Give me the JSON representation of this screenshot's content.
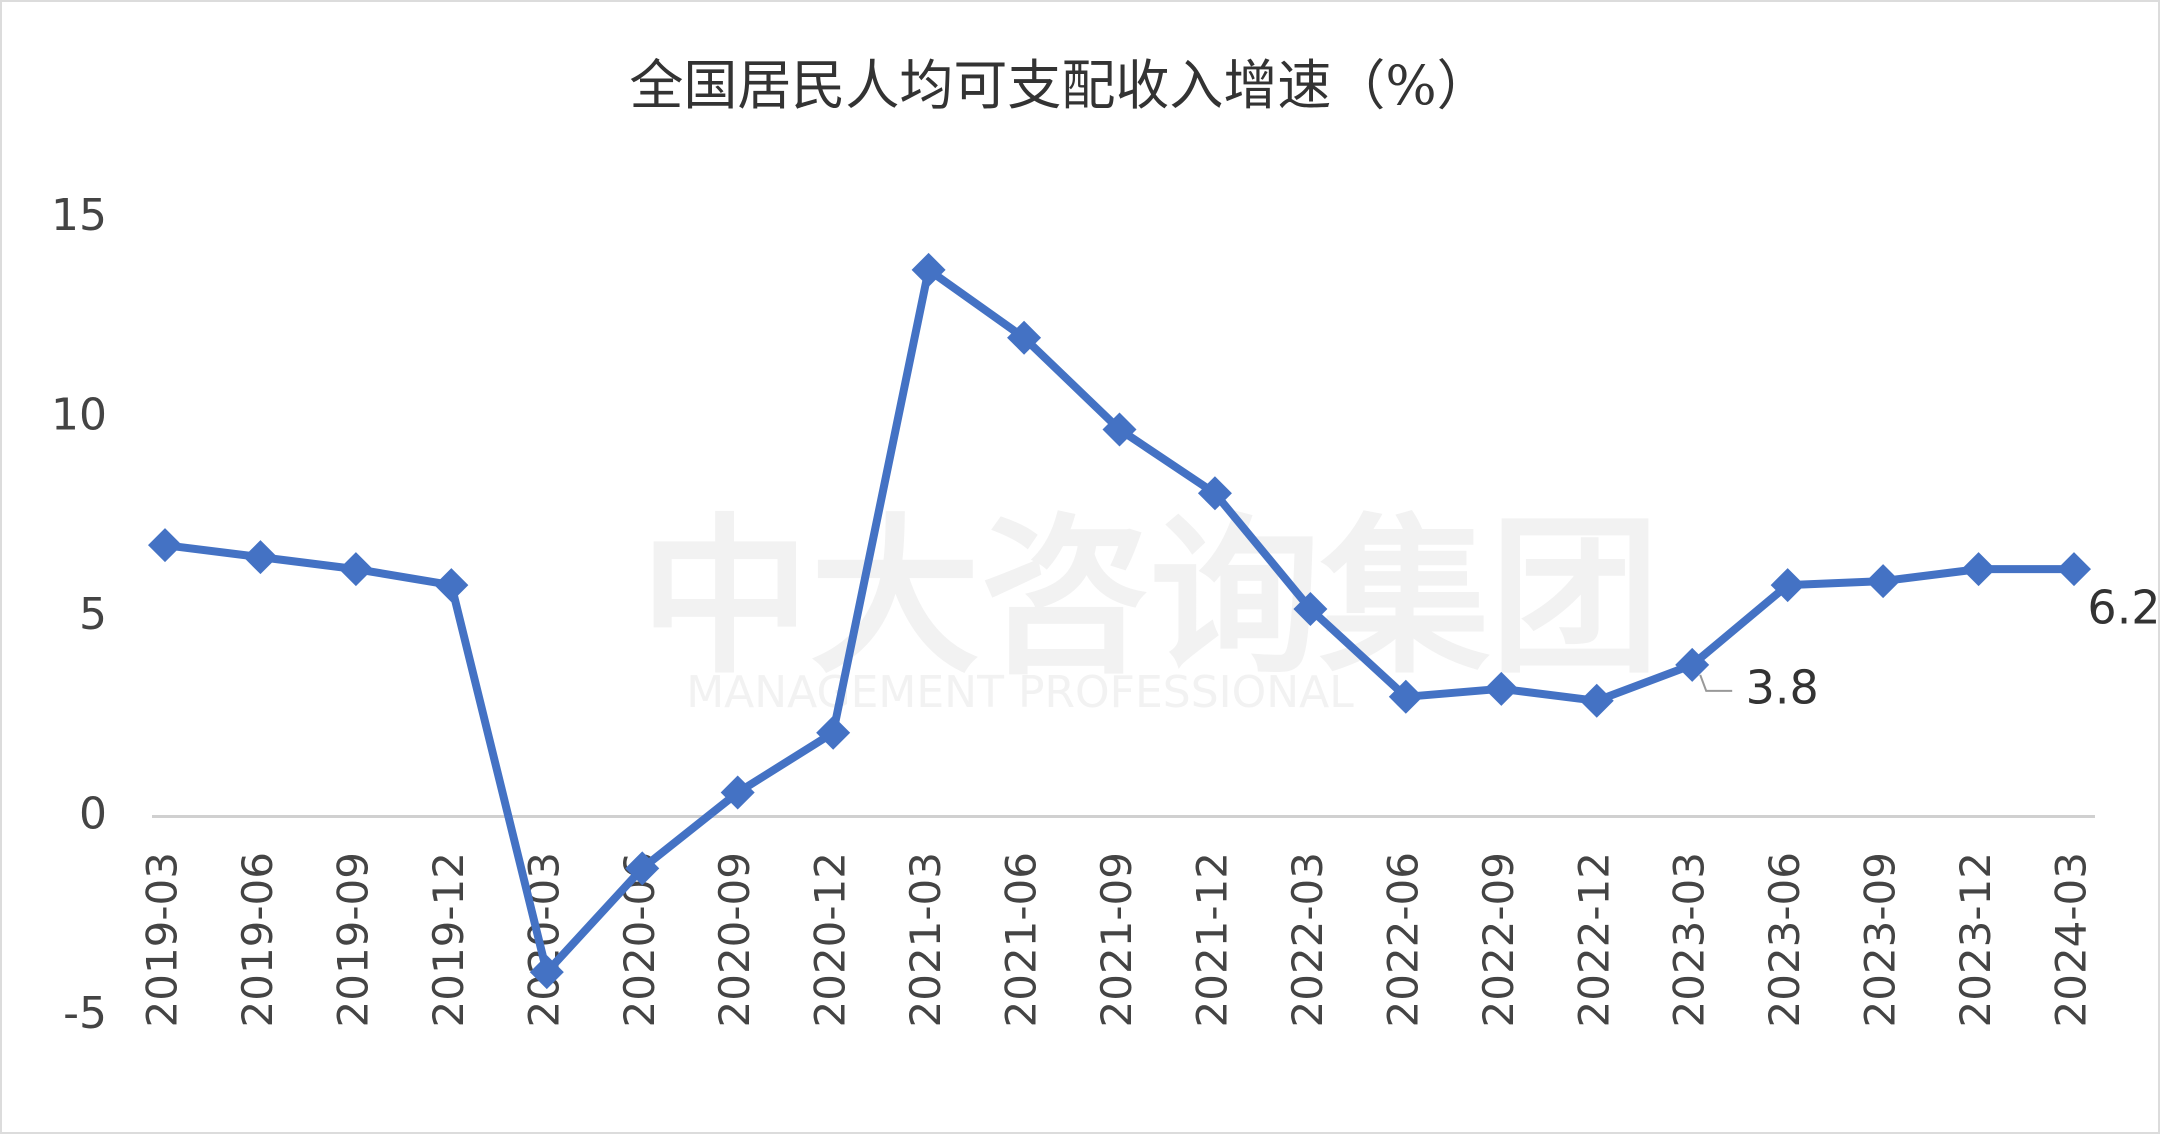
{
  "chart_data": {
    "type": "line",
    "title": "全国居民人均可支配收入增速（%）",
    "categories": [
      "2019-03",
      "2019-06",
      "2019-09",
      "2019-12",
      "2020-03",
      "2020-06",
      "2020-09",
      "2020-12",
      "2021-03",
      "2021-06",
      "2021-09",
      "2021-12",
      "2022-03",
      "2022-06",
      "2022-09",
      "2022-12",
      "2023-03",
      "2023-06",
      "2023-09",
      "2023-12",
      "2024-03"
    ],
    "values": [
      6.8,
      6.5,
      6.2,
      5.8,
      -3.9,
      -1.3,
      0.6,
      2.1,
      13.7,
      12.0,
      9.7,
      8.1,
      5.2,
      3.0,
      3.2,
      2.9,
      3.8,
      5.8,
      5.9,
      6.2,
      6.2
    ],
    "value_labels": [
      null,
      null,
      null,
      null,
      null,
      null,
      null,
      null,
      null,
      null,
      null,
      null,
      null,
      null,
      null,
      null,
      "3.8",
      null,
      null,
      null,
      "6.2"
    ],
    "color": "#4472c4",
    "ylim": [
      -5,
      15
    ],
    "yticks": [
      -5,
      0,
      5,
      10,
      15
    ],
    "watermark": {
      "text": "中大咨询集团",
      "subtitle": "MANAGEMENT PROFESSIONAL"
    }
  }
}
